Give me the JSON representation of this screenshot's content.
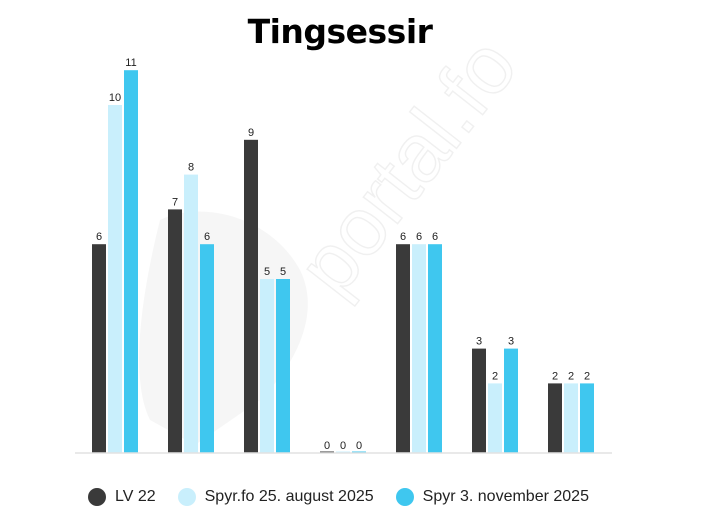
{
  "watermark": "portal.fo",
  "chart_data": {
    "type": "bar",
    "title": "Tingsessir",
    "xlabel": "",
    "ylabel": "",
    "ylim": [
      0,
      11
    ],
    "grid": false,
    "legend_position": "bottom",
    "categories": [
      "",
      "",
      "",
      "",
      "",
      "",
      ""
    ],
    "series": [
      {
        "name": "LV 22",
        "color": "#3a3a3a",
        "values": [
          6,
          7,
          9,
          0,
          6,
          3,
          2
        ]
      },
      {
        "name": "Spyr.fo 25. august 2025",
        "color": "#c9effc",
        "values": [
          10,
          8,
          5,
          0,
          6,
          2,
          2
        ]
      },
      {
        "name": "Spyr 3. november 2025",
        "color": "#3fc7ef",
        "values": [
          11,
          6,
          5,
          0,
          6,
          3,
          2
        ]
      }
    ]
  }
}
